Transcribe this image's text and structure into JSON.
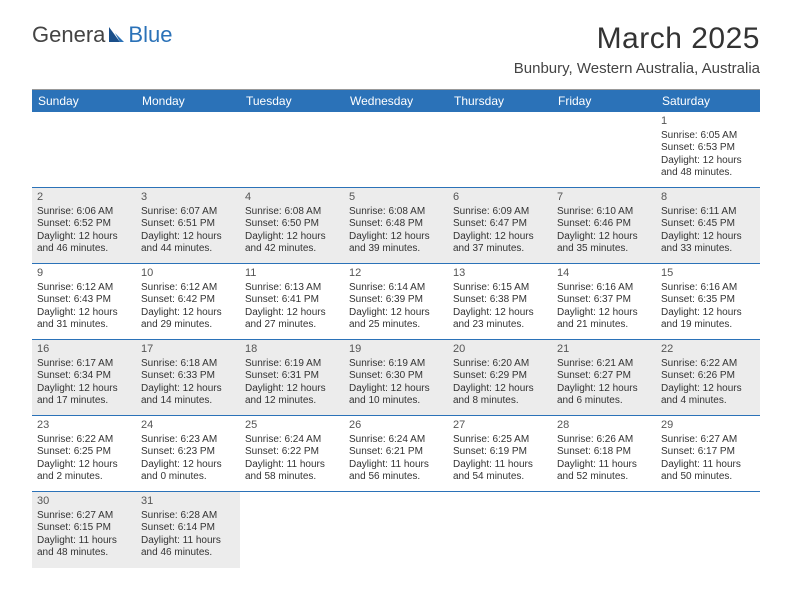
{
  "logo": {
    "part1": "Genera",
    "part2": "Blue"
  },
  "title": "March 2025",
  "subtitle": "Bunbury, Western Australia, Australia",
  "header_bg": "#2b72b8",
  "days": [
    "Sunday",
    "Monday",
    "Tuesday",
    "Wednesday",
    "Thursday",
    "Friday",
    "Saturday"
  ],
  "cells": [
    {
      "n": "",
      "l1": "",
      "l2": "",
      "l3": "",
      "l4": "",
      "empty": true
    },
    {
      "n": "",
      "l1": "",
      "l2": "",
      "l3": "",
      "l4": "",
      "empty": true
    },
    {
      "n": "",
      "l1": "",
      "l2": "",
      "l3": "",
      "l4": "",
      "empty": true
    },
    {
      "n": "",
      "l1": "",
      "l2": "",
      "l3": "",
      "l4": "",
      "empty": true
    },
    {
      "n": "",
      "l1": "",
      "l2": "",
      "l3": "",
      "l4": "",
      "empty": true
    },
    {
      "n": "",
      "l1": "",
      "l2": "",
      "l3": "",
      "l4": "",
      "empty": true
    },
    {
      "n": "1",
      "l1": "Sunrise: 6:05 AM",
      "l2": "Sunset: 6:53 PM",
      "l3": "Daylight: 12 hours",
      "l4": "and 48 minutes."
    },
    {
      "n": "2",
      "l1": "Sunrise: 6:06 AM",
      "l2": "Sunset: 6:52 PM",
      "l3": "Daylight: 12 hours",
      "l4": "and 46 minutes.",
      "shade": true
    },
    {
      "n": "3",
      "l1": "Sunrise: 6:07 AM",
      "l2": "Sunset: 6:51 PM",
      "l3": "Daylight: 12 hours",
      "l4": "and 44 minutes.",
      "shade": true
    },
    {
      "n": "4",
      "l1": "Sunrise: 6:08 AM",
      "l2": "Sunset: 6:50 PM",
      "l3": "Daylight: 12 hours",
      "l4": "and 42 minutes.",
      "shade": true
    },
    {
      "n": "5",
      "l1": "Sunrise: 6:08 AM",
      "l2": "Sunset: 6:48 PM",
      "l3": "Daylight: 12 hours",
      "l4": "and 39 minutes.",
      "shade": true
    },
    {
      "n": "6",
      "l1": "Sunrise: 6:09 AM",
      "l2": "Sunset: 6:47 PM",
      "l3": "Daylight: 12 hours",
      "l4": "and 37 minutes.",
      "shade": true
    },
    {
      "n": "7",
      "l1": "Sunrise: 6:10 AM",
      "l2": "Sunset: 6:46 PM",
      "l3": "Daylight: 12 hours",
      "l4": "and 35 minutes.",
      "shade": true
    },
    {
      "n": "8",
      "l1": "Sunrise: 6:11 AM",
      "l2": "Sunset: 6:45 PM",
      "l3": "Daylight: 12 hours",
      "l4": "and 33 minutes.",
      "shade": true
    },
    {
      "n": "9",
      "l1": "Sunrise: 6:12 AM",
      "l2": "Sunset: 6:43 PM",
      "l3": "Daylight: 12 hours",
      "l4": "and 31 minutes."
    },
    {
      "n": "10",
      "l1": "Sunrise: 6:12 AM",
      "l2": "Sunset: 6:42 PM",
      "l3": "Daylight: 12 hours",
      "l4": "and 29 minutes."
    },
    {
      "n": "11",
      "l1": "Sunrise: 6:13 AM",
      "l2": "Sunset: 6:41 PM",
      "l3": "Daylight: 12 hours",
      "l4": "and 27 minutes."
    },
    {
      "n": "12",
      "l1": "Sunrise: 6:14 AM",
      "l2": "Sunset: 6:39 PM",
      "l3": "Daylight: 12 hours",
      "l4": "and 25 minutes."
    },
    {
      "n": "13",
      "l1": "Sunrise: 6:15 AM",
      "l2": "Sunset: 6:38 PM",
      "l3": "Daylight: 12 hours",
      "l4": "and 23 minutes."
    },
    {
      "n": "14",
      "l1": "Sunrise: 6:16 AM",
      "l2": "Sunset: 6:37 PM",
      "l3": "Daylight: 12 hours",
      "l4": "and 21 minutes."
    },
    {
      "n": "15",
      "l1": "Sunrise: 6:16 AM",
      "l2": "Sunset: 6:35 PM",
      "l3": "Daylight: 12 hours",
      "l4": "and 19 minutes."
    },
    {
      "n": "16",
      "l1": "Sunrise: 6:17 AM",
      "l2": "Sunset: 6:34 PM",
      "l3": "Daylight: 12 hours",
      "l4": "and 17 minutes.",
      "shade": true
    },
    {
      "n": "17",
      "l1": "Sunrise: 6:18 AM",
      "l2": "Sunset: 6:33 PM",
      "l3": "Daylight: 12 hours",
      "l4": "and 14 minutes.",
      "shade": true
    },
    {
      "n": "18",
      "l1": "Sunrise: 6:19 AM",
      "l2": "Sunset: 6:31 PM",
      "l3": "Daylight: 12 hours",
      "l4": "and 12 minutes.",
      "shade": true
    },
    {
      "n": "19",
      "l1": "Sunrise: 6:19 AM",
      "l2": "Sunset: 6:30 PM",
      "l3": "Daylight: 12 hours",
      "l4": "and 10 minutes.",
      "shade": true
    },
    {
      "n": "20",
      "l1": "Sunrise: 6:20 AM",
      "l2": "Sunset: 6:29 PM",
      "l3": "Daylight: 12 hours",
      "l4": "and 8 minutes.",
      "shade": true
    },
    {
      "n": "21",
      "l1": "Sunrise: 6:21 AM",
      "l2": "Sunset: 6:27 PM",
      "l3": "Daylight: 12 hours",
      "l4": "and 6 minutes.",
      "shade": true
    },
    {
      "n": "22",
      "l1": "Sunrise: 6:22 AM",
      "l2": "Sunset: 6:26 PM",
      "l3": "Daylight: 12 hours",
      "l4": "and 4 minutes.",
      "shade": true
    },
    {
      "n": "23",
      "l1": "Sunrise: 6:22 AM",
      "l2": "Sunset: 6:25 PM",
      "l3": "Daylight: 12 hours",
      "l4": "and 2 minutes."
    },
    {
      "n": "24",
      "l1": "Sunrise: 6:23 AM",
      "l2": "Sunset: 6:23 PM",
      "l3": "Daylight: 12 hours",
      "l4": "and 0 minutes."
    },
    {
      "n": "25",
      "l1": "Sunrise: 6:24 AM",
      "l2": "Sunset: 6:22 PM",
      "l3": "Daylight: 11 hours",
      "l4": "and 58 minutes."
    },
    {
      "n": "26",
      "l1": "Sunrise: 6:24 AM",
      "l2": "Sunset: 6:21 PM",
      "l3": "Daylight: 11 hours",
      "l4": "and 56 minutes."
    },
    {
      "n": "27",
      "l1": "Sunrise: 6:25 AM",
      "l2": "Sunset: 6:19 PM",
      "l3": "Daylight: 11 hours",
      "l4": "and 54 minutes."
    },
    {
      "n": "28",
      "l1": "Sunrise: 6:26 AM",
      "l2": "Sunset: 6:18 PM",
      "l3": "Daylight: 11 hours",
      "l4": "and 52 minutes."
    },
    {
      "n": "29",
      "l1": "Sunrise: 6:27 AM",
      "l2": "Sunset: 6:17 PM",
      "l3": "Daylight: 11 hours",
      "l4": "and 50 minutes."
    },
    {
      "n": "30",
      "l1": "Sunrise: 6:27 AM",
      "l2": "Sunset: 6:15 PM",
      "l3": "Daylight: 11 hours",
      "l4": "and 48 minutes.",
      "shade": true,
      "noborder": true
    },
    {
      "n": "31",
      "l1": "Sunrise: 6:28 AM",
      "l2": "Sunset: 6:14 PM",
      "l3": "Daylight: 11 hours",
      "l4": "and 46 minutes.",
      "shade": true,
      "noborder": true
    },
    {
      "n": "",
      "l1": "",
      "l2": "",
      "l3": "",
      "l4": "",
      "empty": true,
      "noborder": true
    },
    {
      "n": "",
      "l1": "",
      "l2": "",
      "l3": "",
      "l4": "",
      "empty": true,
      "noborder": true
    },
    {
      "n": "",
      "l1": "",
      "l2": "",
      "l3": "",
      "l4": "",
      "empty": true,
      "noborder": true
    },
    {
      "n": "",
      "l1": "",
      "l2": "",
      "l3": "",
      "l4": "",
      "empty": true,
      "noborder": true
    },
    {
      "n": "",
      "l1": "",
      "l2": "",
      "l3": "",
      "l4": "",
      "empty": true,
      "noborder": true
    }
  ]
}
